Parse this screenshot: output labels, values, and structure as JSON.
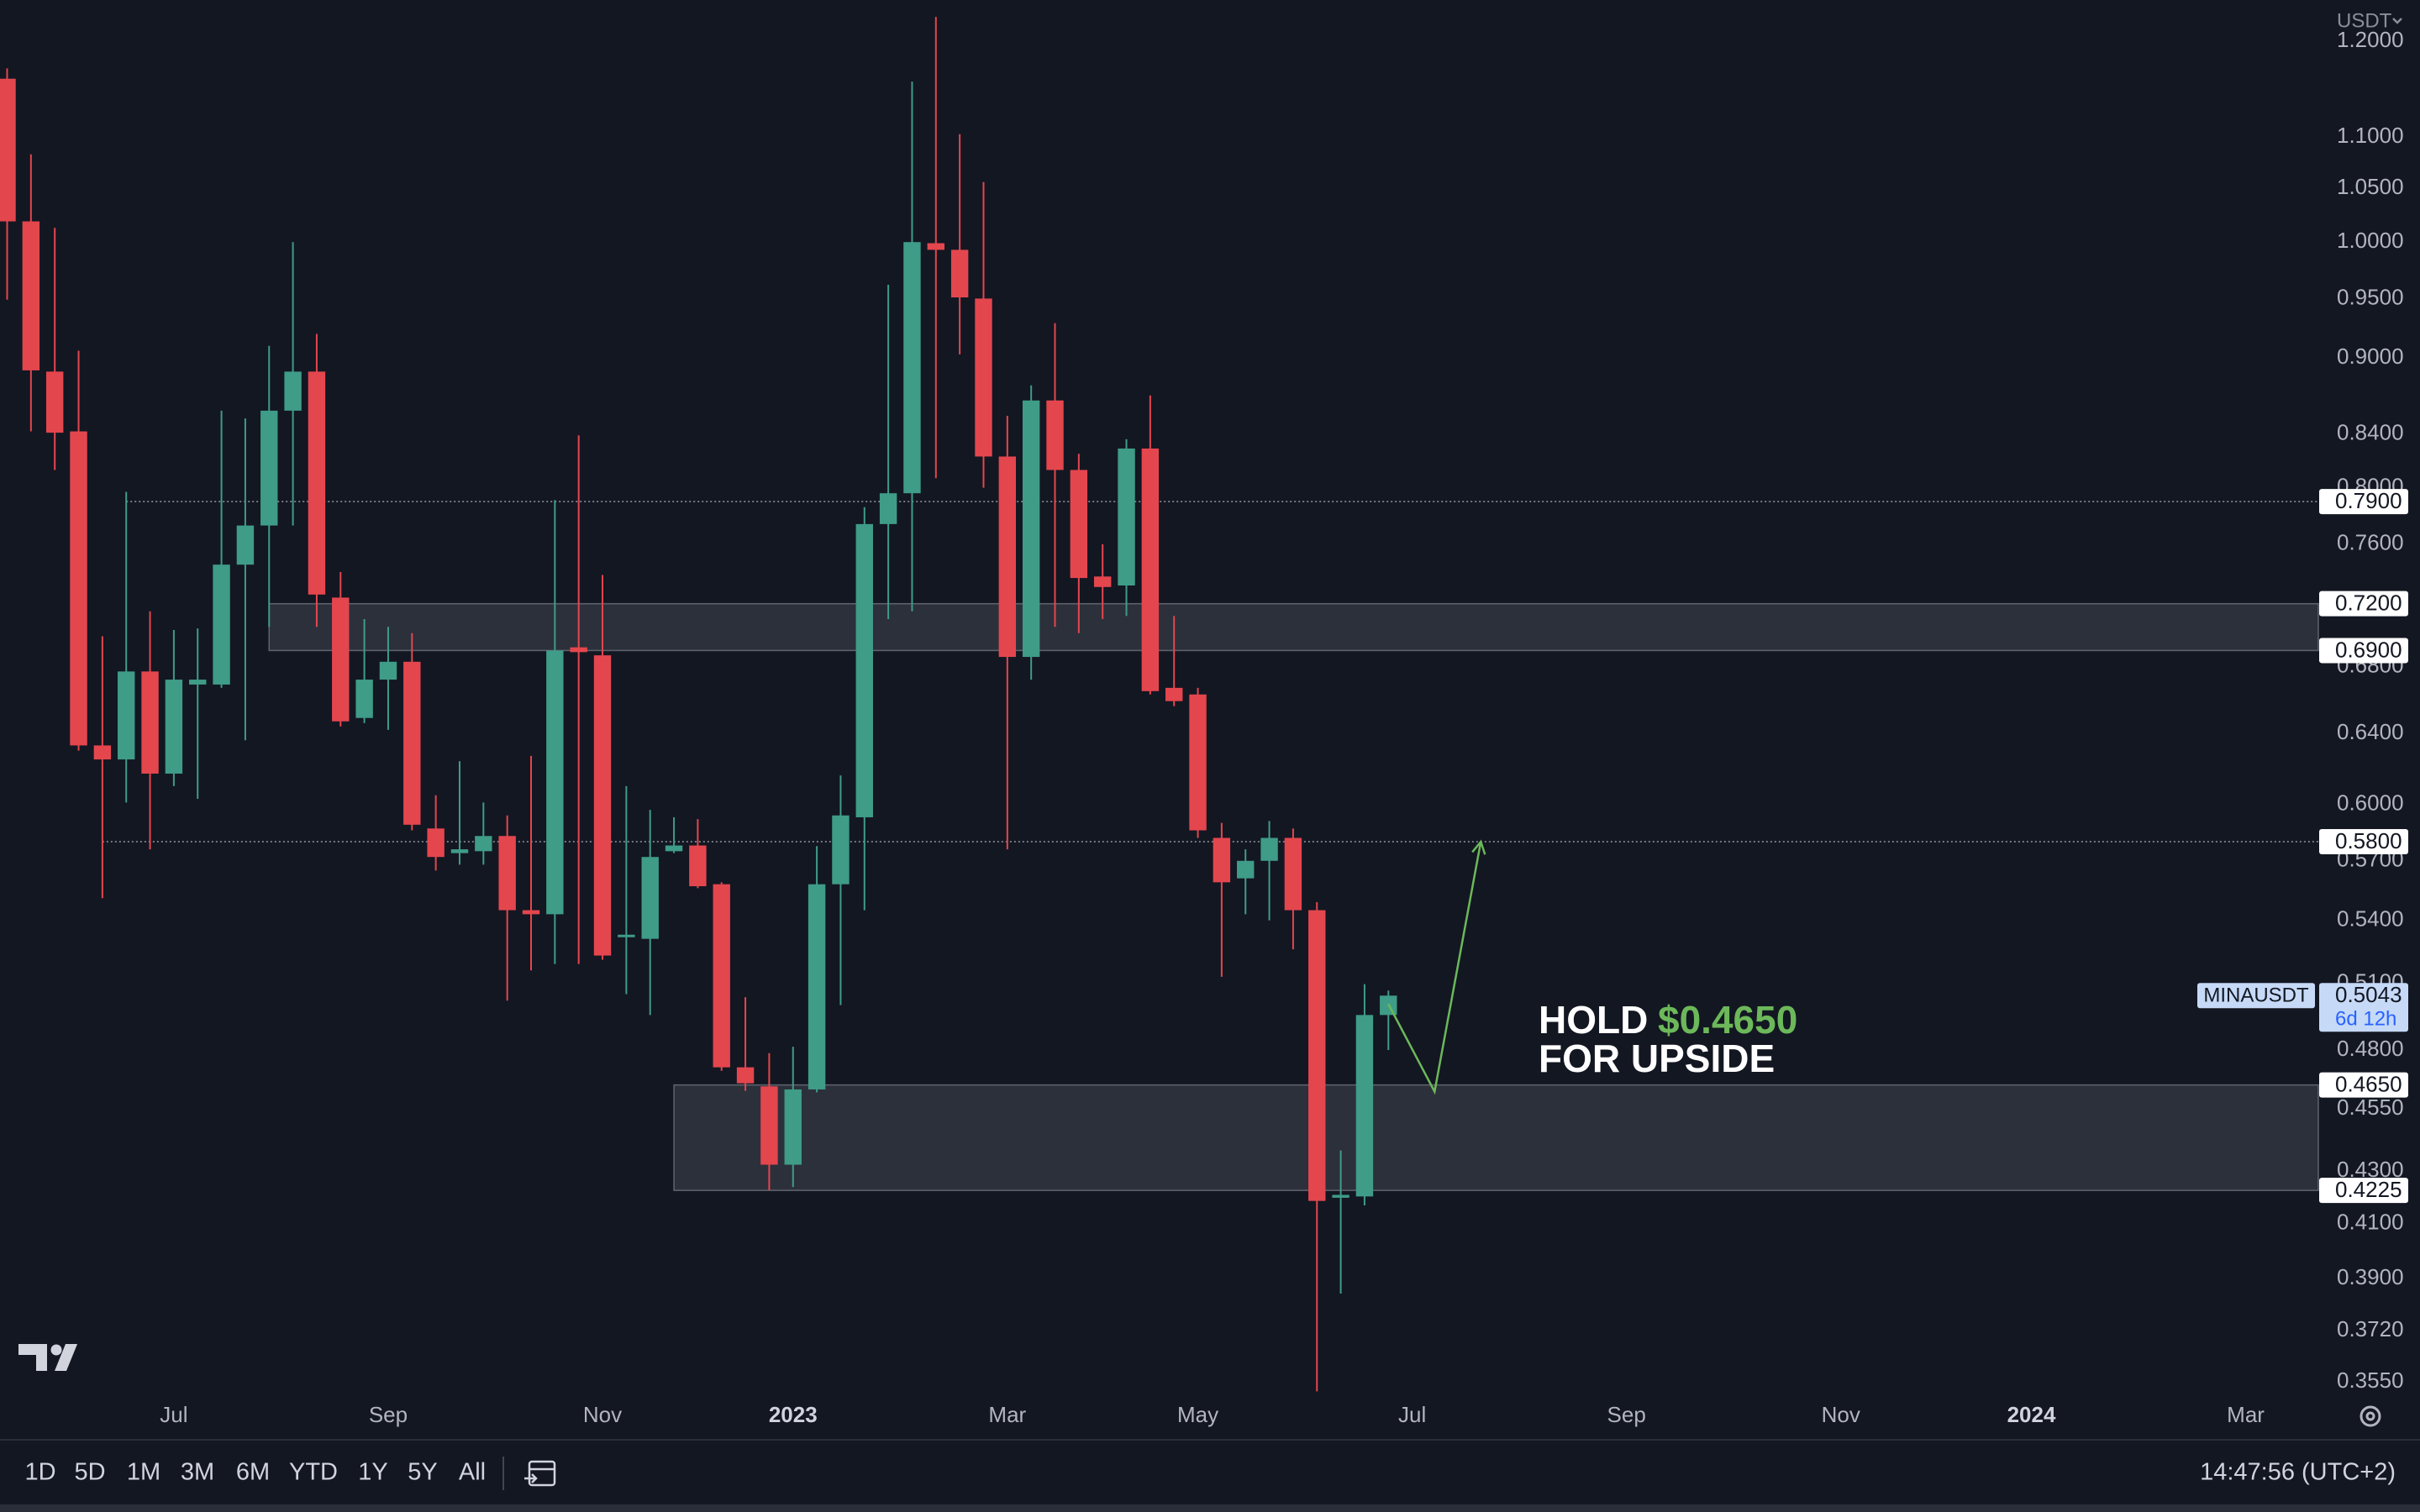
{
  "chart_data": {
    "type": "candlestick",
    "currency": "USDT",
    "symbol": "MINAUSDT",
    "open": [
      1.16,
      1.019,
      0.889,
      0.842,
      0.633,
      0.625,
      0.677,
      0.617,
      0.669,
      0.669,
      0.746,
      0.773,
      0.858,
      0.889,
      0.724,
      0.649,
      0.672,
      0.683,
      0.587,
      0.574,
      0.575,
      0.583,
      0.545,
      0.543,
      0.692,
      0.687,
      0.532,
      0.531,
      0.575,
      0.578,
      0.558,
      0.4725,
      0.4644,
      0.4325,
      0.4631,
      0.558,
      0.593,
      0.774,
      0.796,
      0.999,
      0.993,
      0.95,
      0.823,
      0.686,
      0.866,
      0.813,
      0.738,
      0.732,
      0.829,
      0.667,
      0.663,
      0.582,
      0.561,
      0.57,
      0.582,
      0.545,
      0.4197,
      0.4202,
      0.4955
    ],
    "high": [
      1.171,
      1.083,
      1.013,
      0.906,
      0.699,
      0.797,
      0.715,
      0.703,
      0.704,
      0.858,
      0.852,
      0.91,
      1.0,
      0.92,
      0.741,
      0.71,
      0.705,
      0.701,
      0.605,
      0.624,
      0.601,
      0.594,
      0.627,
      0.791,
      0.839,
      0.739,
      0.61,
      0.597,
      0.593,
      0.592,
      0.559,
      0.5036,
      0.4786,
      0.4814,
      0.5777,
      0.616,
      0.786,
      0.962,
      1.157,
      1.227,
      1.103,
      1.056,
      0.854,
      0.878,
      0.929,
      0.825,
      0.76,
      0.836,
      0.87,
      0.712,
      0.667,
      0.59,
      0.576,
      0.591,
      0.587,
      0.549,
      0.4381,
      0.5096,
      0.5066
    ],
    "low": [
      0.949,
      0.842,
      0.813,
      0.63,
      0.551,
      0.601,
      0.576,
      0.61,
      0.603,
      0.667,
      0.636,
      0.705,
      0.773,
      0.705,
      0.644,
      0.646,
      0.642,
      0.586,
      0.565,
      0.568,
      0.568,
      0.502,
      0.516,
      0.519,
      0.519,
      0.521,
      0.505,
      0.4955,
      0.574,
      0.556,
      0.471,
      0.4625,
      0.4225,
      0.4238,
      0.4619,
      0.5,
      0.545,
      0.71,
      0.715,
      0.807,
      0.903,
      0.8,
      0.576,
      0.672,
      0.705,
      0.701,
      0.71,
      0.712,
      0.663,
      0.656,
      0.582,
      0.513,
      0.543,
      0.54,
      0.526,
      0.352,
      0.3847,
      0.4168,
      0.48
    ],
    "close": [
      1.019,
      0.89,
      0.841,
      0.633,
      0.625,
      0.677,
      0.617,
      0.672,
      0.672,
      0.746,
      0.773,
      0.858,
      0.889,
      0.726,
      0.647,
      0.672,
      0.683,
      0.589,
      0.572,
      0.576,
      0.583,
      0.545,
      0.543,
      0.69,
      0.689,
      0.523,
      0.533,
      0.572,
      0.578,
      0.557,
      0.4725,
      0.4657,
      0.4325,
      0.4631,
      0.558,
      0.594,
      0.774,
      0.796,
      1.0,
      0.993,
      0.951,
      0.823,
      0.686,
      0.866,
      0.813,
      0.737,
      0.731,
      0.829,
      0.665,
      0.659,
      0.586,
      0.559,
      0.57,
      0.582,
      0.545,
      0.4185,
      0.4208,
      0.4955,
      0.5043
    ],
    "up_color": "#3f9c86",
    "down_color": "#e4464e",
    "log_scale": true,
    "xlim": [
      -0.3,
      97.05
    ],
    "ylim": [
      0.3505,
      1.246
    ],
    "xticks": [
      {
        "value": 7,
        "label": "Jul"
      },
      {
        "value": 16,
        "label": "Sep"
      },
      {
        "value": 25,
        "label": "Nov"
      },
      {
        "value": 33,
        "label": "2023"
      },
      {
        "value": 42,
        "label": "Mar"
      },
      {
        "value": 50,
        "label": "May"
      },
      {
        "value": 59,
        "label": "Jul"
      },
      {
        "value": 68,
        "label": "Sep"
      },
      {
        "value": 77,
        "label": "Nov"
      },
      {
        "value": 85,
        "label": "2024"
      },
      {
        "value": 94,
        "label": "Mar"
      }
    ],
    "yticks": [
      {
        "value": 1.2,
        "label": "1.2000"
      },
      {
        "value": 1.1,
        "label": "1.1000"
      },
      {
        "value": 1.05,
        "label": "1.0500"
      },
      {
        "value": 1.0,
        "label": "1.0000"
      },
      {
        "value": 0.95,
        "label": "0.9500"
      },
      {
        "value": 0.9,
        "label": "0.9000"
      },
      {
        "value": 0.84,
        "label": "0.8400"
      },
      {
        "value": 0.8,
        "label": "0.8000"
      },
      {
        "value": 0.76,
        "label": "0.7600"
      },
      {
        "value": 0.68,
        "label": "0.6800"
      },
      {
        "value": 0.64,
        "label": "0.6400"
      },
      {
        "value": 0.6,
        "label": "0.6000"
      },
      {
        "value": 0.57,
        "label": "0.5700"
      },
      {
        "value": 0.54,
        "label": "0.5400"
      },
      {
        "value": 0.51,
        "label": "0.5100"
      },
      {
        "value": 0.48,
        "label": "0.4800"
      },
      {
        "value": 0.455,
        "label": "0.4550"
      },
      {
        "value": 0.43,
        "label": "0.4300"
      },
      {
        "value": 0.41,
        "label": "0.4100"
      },
      {
        "value": 0.39,
        "label": "0.3900"
      },
      {
        "value": 0.372,
        "label": "0.3720"
      },
      {
        "value": 0.355,
        "label": "0.3550"
      }
    ],
    "levels": [
      {
        "value": 0.79,
        "label": "0.7900",
        "start": 5
      },
      {
        "value": 0.58,
        "label": "0.5800",
        "start": 4
      }
    ],
    "zones": [
      {
        "low": {
          "value": 0.69,
          "label": "0.6900"
        },
        "high": {
          "value": 0.72,
          "label": "0.7200"
        },
        "start": 11
      },
      {
        "low": {
          "value": 0.4225,
          "label": "0.4225"
        },
        "high": {
          "value": 0.465,
          "label": "0.4650"
        },
        "start": 28
      }
    ],
    "last_price": {
      "value": 0.5043,
      "label": "0.5043",
      "countdown": "6d 12h"
    },
    "annotation": {
      "text": "HOLD",
      "price": "$0.4650",
      "text2": "FOR UPSIDE",
      "price_color": "#6cb85a"
    }
  },
  "toolbar": {
    "ranges": [
      "1D",
      "5D",
      "1M",
      "3M",
      "6M",
      "YTD",
      "1Y",
      "5Y",
      "All"
    ],
    "clock": "14:47:56 (UTC+2)"
  }
}
